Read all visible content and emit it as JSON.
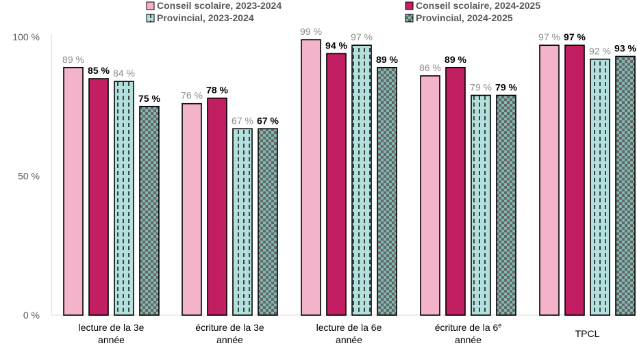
{
  "chart_data": {
    "type": "bar",
    "categories": [
      [
        "lecture de la 3e",
        "année"
      ],
      [
        "écriture  de la 3e",
        "année"
      ],
      [
        "lecture de la 6e",
        "année"
      ],
      [
        "écriture  de la 6e",
        "année"
      ],
      [
        "TPCL"
      ]
    ],
    "series": [
      {
        "name": "Conseil scolaire, 2023-2024",
        "values": [
          89,
          76,
          99,
          86,
          97
        ],
        "value_labels": [
          "89 %",
          "76 %",
          "99 %",
          "86 %",
          "97 %"
        ],
        "color": "#f2b3cb",
        "pattern": "solid",
        "label_style": "gray"
      },
      {
        "name": "Conseil scolaire, 2024-2025",
        "values": [
          85,
          78,
          94,
          89,
          97
        ],
        "value_labels": [
          "85 %",
          "78 %",
          "94 %",
          "89 %",
          "97 %"
        ],
        "color": "#c21e62",
        "pattern": "solid",
        "label_style": "bold"
      },
      {
        "name": "Provincial, 2023-2024",
        "values": [
          84,
          67,
          97,
          79,
          92
        ],
        "value_labels": [
          "84 %",
          "67 %",
          "97 %",
          "79 %",
          "92 %"
        ],
        "color": "#b3e0dc",
        "pattern": "dashed-vertical",
        "label_style": "gray"
      },
      {
        "name": "Provincial, 2024-2025",
        "values": [
          75,
          67,
          89,
          79,
          93
        ],
        "value_labels": [
          "75 %",
          "67 %",
          "89 %",
          "79 %",
          "93 %"
        ],
        "color": "#8fb8b3",
        "pattern": "checker",
        "label_style": "bold"
      }
    ],
    "y_ticks": [
      0,
      50,
      100
    ],
    "y_tick_labels": [
      "0 %",
      "50 %",
      "100 %"
    ],
    "ylim": [
      0,
      100
    ],
    "legend_position": "top",
    "grid": false,
    "title": "",
    "xlabel": "",
    "ylabel": ""
  }
}
